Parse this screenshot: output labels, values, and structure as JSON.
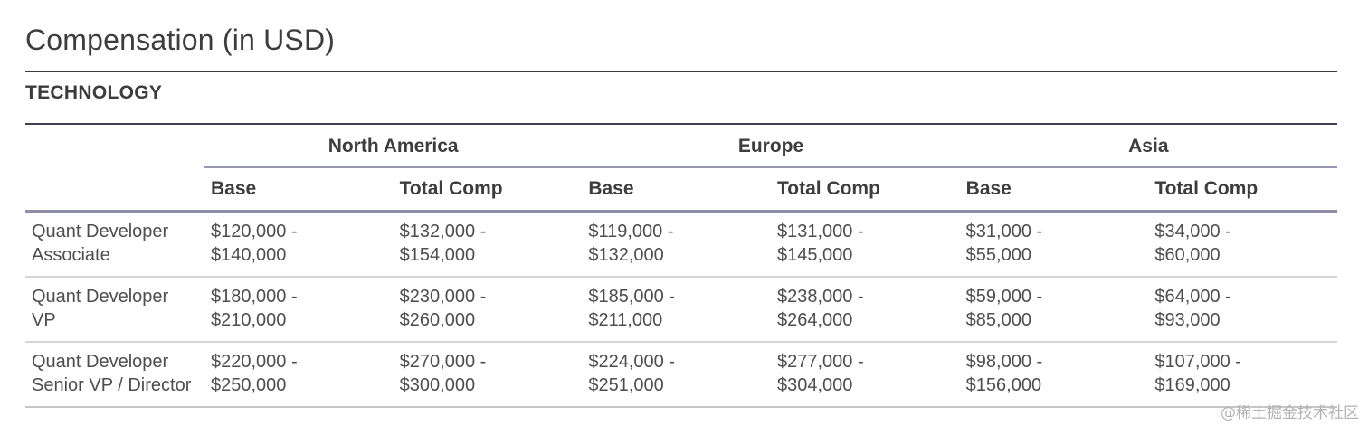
{
  "page": {
    "title": "Compensation (in USD)",
    "section": "TECHNOLOGY",
    "watermark": "@稀土掘金技术社区"
  },
  "colors": {
    "title_text": "#3d3d3d",
    "body_text": "#4e4e4e",
    "title_rule": "#3c3c46",
    "table_top_rule": "#3f3f58",
    "header_rule": "#8d8da8",
    "row_rule": "#d6d6d6",
    "watermark_text": "#b3b3b3"
  },
  "table": {
    "regions": [
      "North America",
      "Europe",
      "Asia"
    ],
    "sub_columns": [
      "Base",
      "Total Comp"
    ],
    "rows": [
      {
        "role": [
          "Quant Developer",
          "Associate"
        ],
        "cells": [
          [
            "$120,000 -",
            "$140,000"
          ],
          [
            "$132,000 -",
            "$154,000"
          ],
          [
            "$119,000 -",
            "$132,000"
          ],
          [
            "$131,000 -",
            "$145,000"
          ],
          [
            "$31,000 -",
            "$55,000"
          ],
          [
            "$34,000 -",
            "$60,000"
          ]
        ]
      },
      {
        "role": [
          "Quant Developer",
          "VP"
        ],
        "cells": [
          [
            "$180,000 -",
            "$210,000"
          ],
          [
            "$230,000 -",
            "$260,000"
          ],
          [
            "$185,000 -",
            "$211,000"
          ],
          [
            "$238,000 -",
            "$264,000"
          ],
          [
            "$59,000 -",
            "$85,000"
          ],
          [
            "$64,000 -",
            "$93,000"
          ]
        ]
      },
      {
        "role": [
          "Quant Developer",
          "Senior VP / Director"
        ],
        "cells": [
          [
            "$220,000 -",
            "$250,000"
          ],
          [
            "$270,000 -",
            "$300,000"
          ],
          [
            "$224,000 -",
            "$251,000"
          ],
          [
            "$277,000 -",
            "$304,000"
          ],
          [
            "$98,000 -",
            "$156,000"
          ],
          [
            "$107,000 -",
            "$169,000"
          ]
        ]
      }
    ]
  }
}
